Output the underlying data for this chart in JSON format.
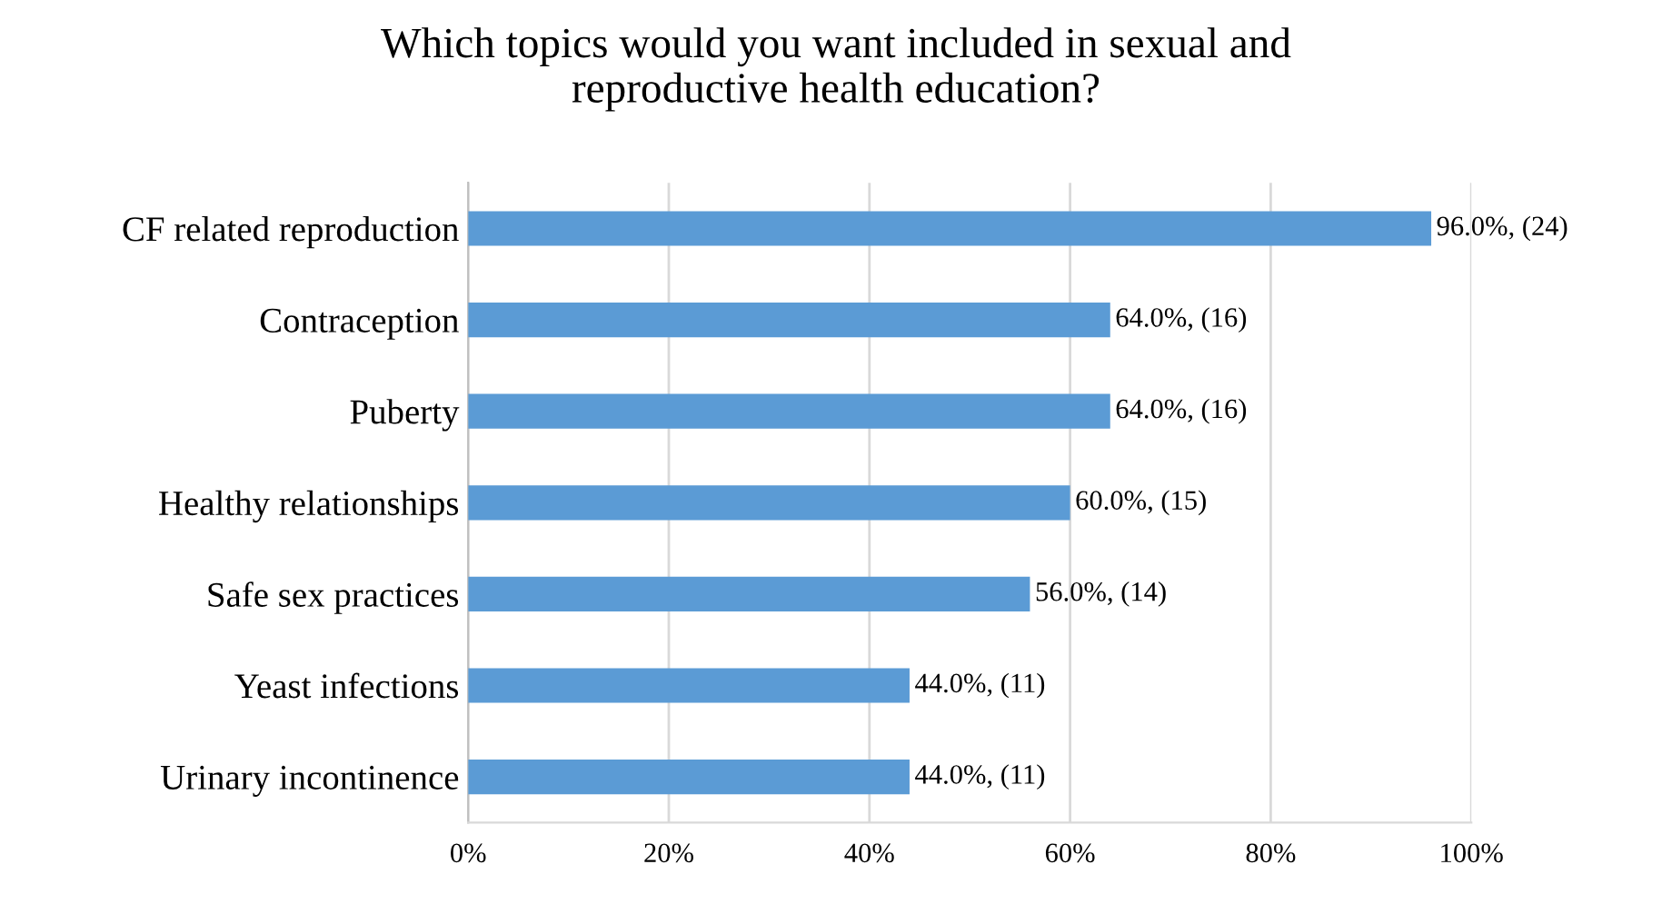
{
  "chart_data": {
    "type": "bar",
    "orientation": "horizontal",
    "title": "Which topics would you want included in sexual and\nreproductive health education?",
    "categories": [
      "CF related reproduction",
      "Contraception",
      "Puberty",
      "Healthy relationships",
      "Safe sex practices",
      "Yeast infections",
      "Urinary incontinence"
    ],
    "values": [
      96.0,
      64.0,
      64.0,
      60.0,
      56.0,
      44.0,
      44.0
    ],
    "value_labels": [
      "96.0%, (24)",
      "64.0%, (16)",
      "64.0%, (16)",
      "60.0%, (15)",
      "56.0%, (14)",
      "44.0%, (11)",
      "44.0%, (11)"
    ],
    "color": "#5b9bd5",
    "xlim": [
      0,
      100
    ],
    "xticks": [
      {
        "value": 0,
        "label": "0%"
      },
      {
        "value": 20,
        "label": "20%"
      },
      {
        "value": 40,
        "label": "40%"
      },
      {
        "value": 60,
        "label": "60%"
      },
      {
        "value": 80,
        "label": "80%"
      },
      {
        "value": 100,
        "label": "100%"
      }
    ],
    "grid": "x",
    "legend": false
  }
}
